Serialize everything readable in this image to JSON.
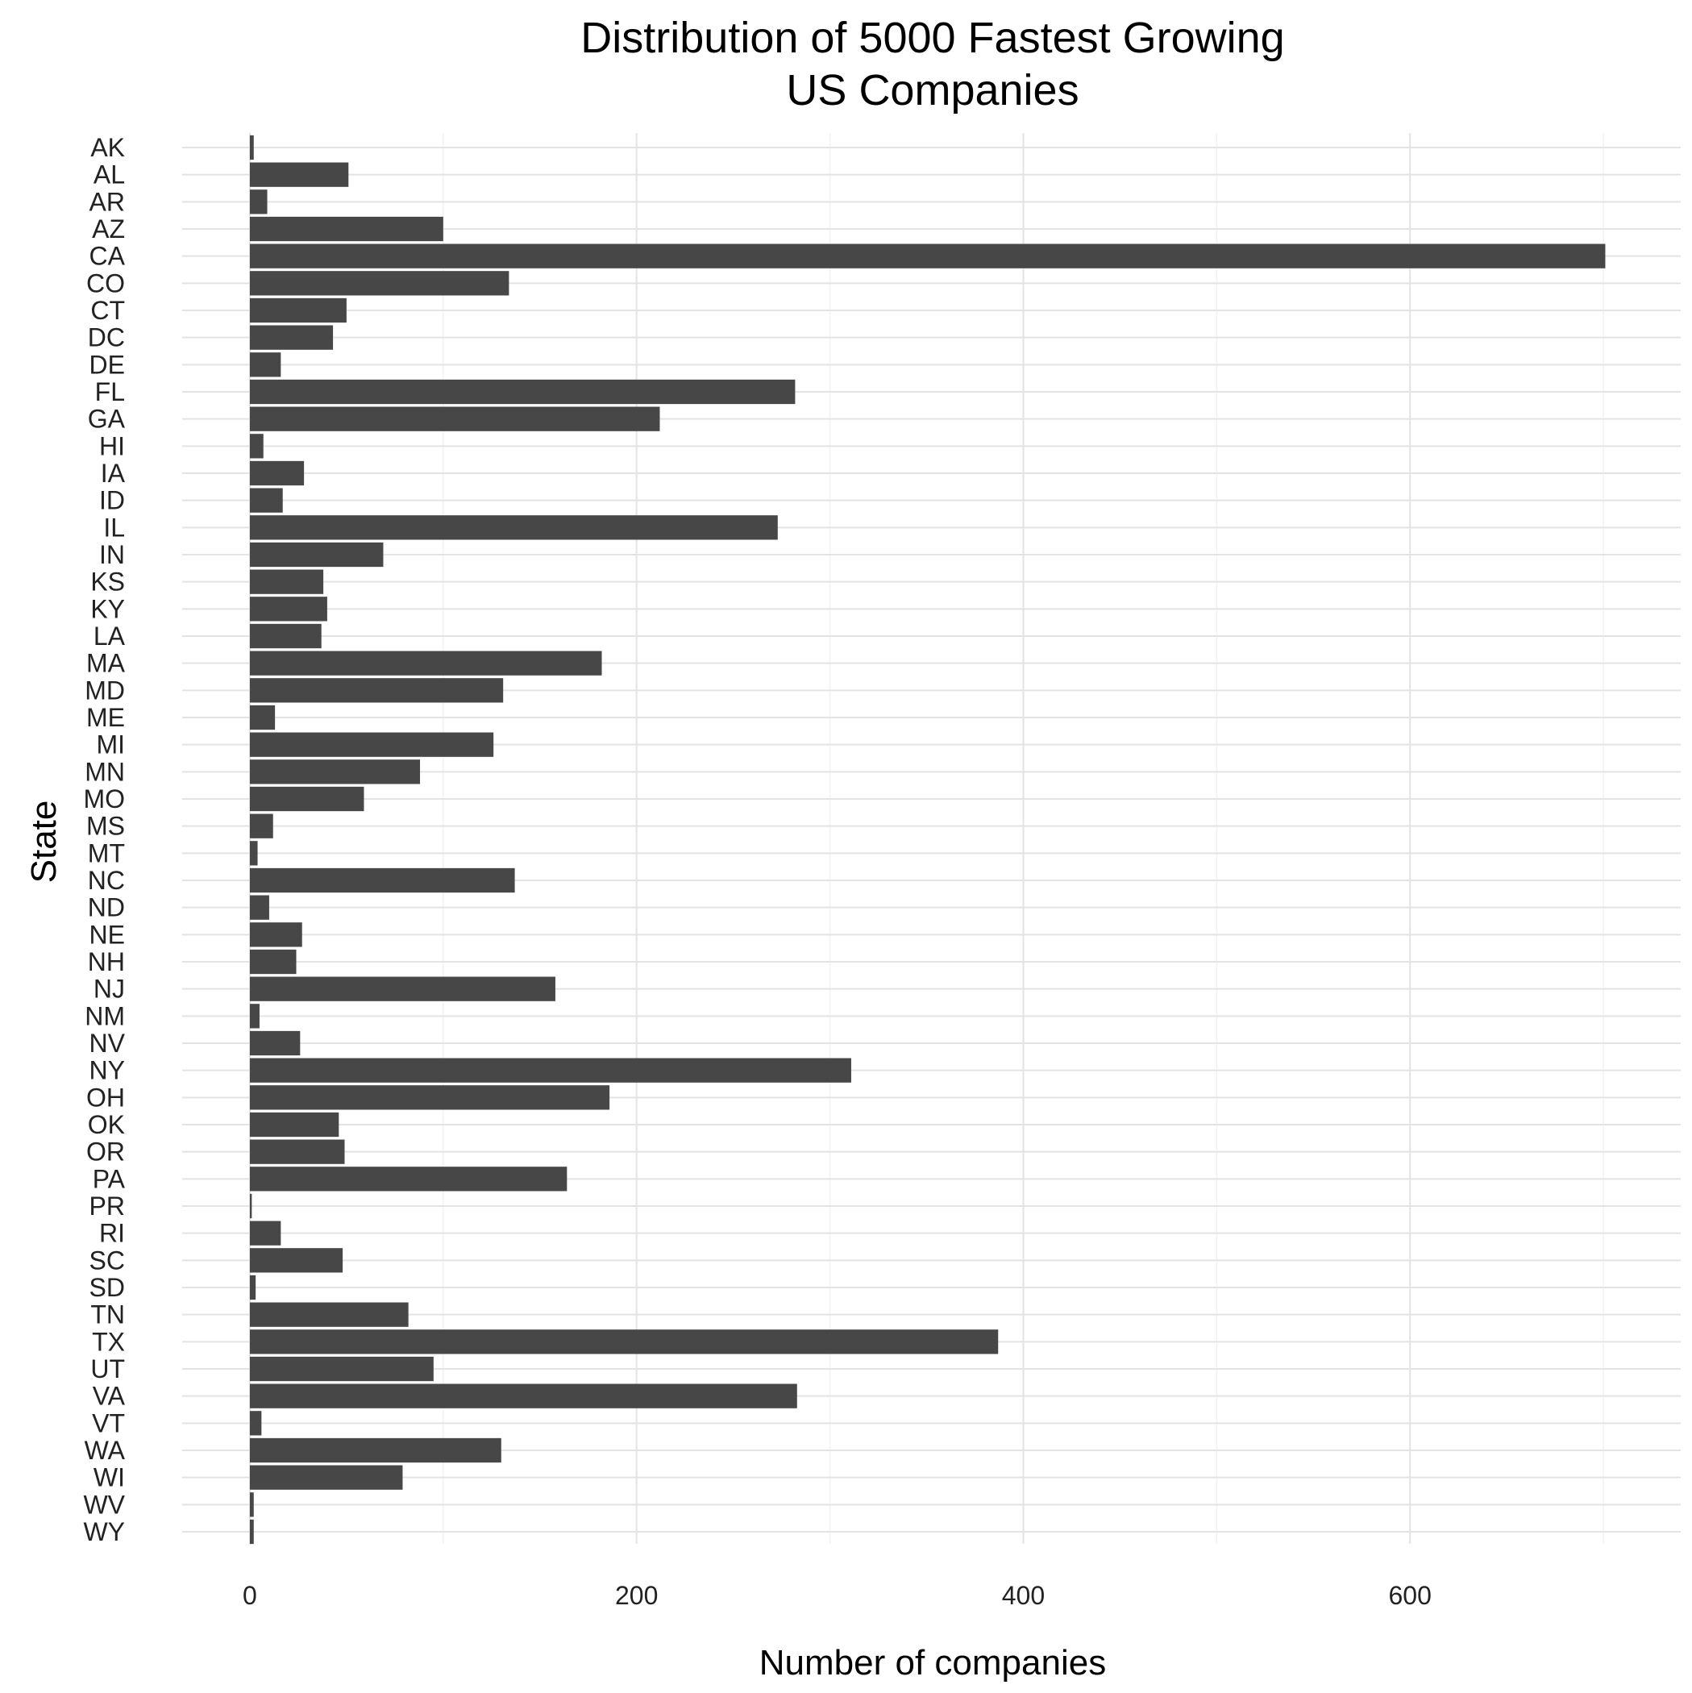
{
  "chart_data": {
    "type": "bar",
    "orientation": "horizontal",
    "title_lines": [
      "Distribution of 5000 Fastest Growing",
      "US Companies"
    ],
    "xlabel": "Number of companies",
    "ylabel": "State",
    "xlim": [
      -35,
      740
    ],
    "x_ticks": [
      0,
      200,
      400,
      600
    ],
    "grid": true,
    "bar_color": "#474747",
    "categories": [
      "AK",
      "AL",
      "AR",
      "AZ",
      "CA",
      "CO",
      "CT",
      "DC",
      "DE",
      "FL",
      "GA",
      "HI",
      "IA",
      "ID",
      "IL",
      "IN",
      "KS",
      "KY",
      "LA",
      "MA",
      "MD",
      "ME",
      "MI",
      "MN",
      "MO",
      "MS",
      "MT",
      "NC",
      "ND",
      "NE",
      "NH",
      "NJ",
      "NM",
      "NV",
      "NY",
      "OH",
      "OK",
      "OR",
      "PA",
      "PR",
      "RI",
      "SC",
      "SD",
      "TN",
      "TX",
      "UT",
      "VA",
      "VT",
      "WA",
      "WI",
      "WV",
      "WY"
    ],
    "values": [
      2,
      51,
      9,
      100,
      701,
      134,
      50,
      43,
      16,
      282,
      212,
      7,
      28,
      17,
      273,
      69,
      38,
      40,
      37,
      182,
      131,
      13,
      126,
      88,
      59,
      12,
      4,
      137,
      10,
      27,
      24,
      158,
      5,
      26,
      311,
      186,
      46,
      49,
      164,
      1,
      16,
      48,
      3,
      82,
      387,
      95,
      283,
      6,
      130,
      79,
      2,
      2
    ]
  }
}
